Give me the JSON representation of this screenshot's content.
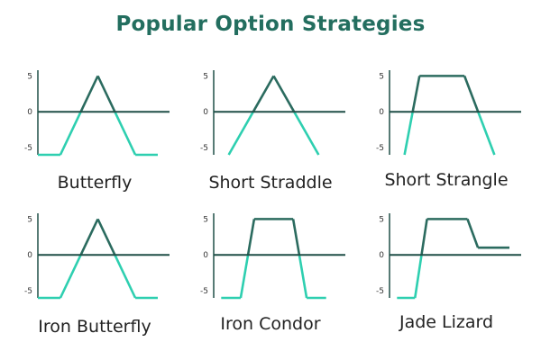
{
  "title": "Popular Option Strategies",
  "colors": {
    "title": "#236e5f",
    "profit": "#2b6b5f",
    "loss": "#2ecfb0",
    "axis": "#1f4f47",
    "tick_text": "#333333"
  },
  "chart_data": [
    {
      "type": "line",
      "title": "Butterfly",
      "x": [
        0,
        1.5,
        4,
        6.5,
        8
      ],
      "y": [
        -6,
        -6,
        5,
        -6,
        -6
      ],
      "yticks": [
        5,
        0,
        -5
      ],
      "ylim": [
        -6,
        5.8
      ],
      "xlim": [
        0,
        8
      ]
    },
    {
      "type": "line",
      "title": "Short Straddle",
      "x": [
        1,
        4,
        7
      ],
      "y": [
        -6,
        5,
        -6
      ],
      "yticks": [
        5,
        0,
        -5
      ],
      "ylim": [
        -6,
        5.8
      ],
      "xlim": [
        0,
        8
      ]
    },
    {
      "type": "line",
      "title": "Short Strangle",
      "x": [
        1,
        2,
        5,
        7
      ],
      "y": [
        -6,
        5,
        5,
        -6
      ],
      "yticks": [
        5,
        0,
        -5
      ],
      "ylim": [
        -6,
        5.8
      ],
      "xlim": [
        0,
        8
      ]
    },
    {
      "type": "line",
      "title": "Iron Butterfly",
      "x": [
        0,
        1.5,
        4,
        6.5,
        8
      ],
      "y": [
        -6,
        -6,
        5,
        -6,
        -6
      ],
      "yticks": [
        5,
        0,
        -5
      ],
      "ylim": [
        -6,
        5.8
      ],
      "xlim": [
        0,
        8
      ]
    },
    {
      "type": "line",
      "title": "Iron Condor",
      "x": [
        0.5,
        1.8,
        2.7,
        5.3,
        6.2,
        7.5
      ],
      "y": [
        -6,
        -6,
        5,
        5,
        -6,
        -6
      ],
      "yticks": [
        5,
        0,
        -5
      ],
      "ylim": [
        -6,
        5.8
      ],
      "xlim": [
        0,
        8
      ]
    },
    {
      "type": "line",
      "title": "Jade Lizard",
      "x": [
        0.5,
        1.7,
        2.5,
        5.2,
        5.9,
        8
      ],
      "y": [
        -6,
        -6,
        5,
        5,
        1,
        1
      ],
      "yticks": [
        5,
        0,
        -5
      ],
      "ylim": [
        -6,
        5.8
      ],
      "xlim": [
        0,
        8
      ]
    }
  ]
}
